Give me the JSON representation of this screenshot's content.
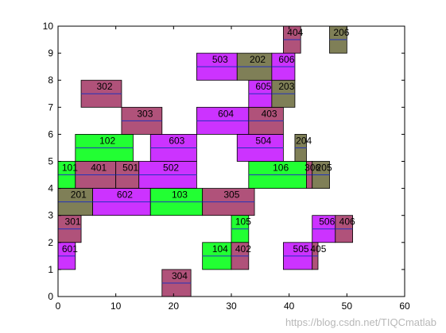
{
  "chart_data": {
    "type": "gantt",
    "xlim": [
      0,
      60
    ],
    "ylim": [
      0,
      10
    ],
    "x_ticks": [
      0,
      10,
      20,
      30,
      40,
      50,
      60
    ],
    "y_ticks": [
      0,
      1,
      2,
      3,
      4,
      5,
      6,
      7,
      8,
      9,
      10
    ],
    "grid": false,
    "colors": {
      "mauve": "#b0527a",
      "magenta": "#cc33ff",
      "green": "#22ff33",
      "olive": "#7f7f57",
      "midline": "#2233bb",
      "axes": "#000000"
    },
    "blocks": [
      {
        "label": "101",
        "x0": 0,
        "x1": 3,
        "y0": 4,
        "y1": 5,
        "color": "green"
      },
      {
        "label": "401",
        "x0": 3,
        "x1": 10,
        "y0": 4,
        "y1": 5,
        "color": "mauve"
      },
      {
        "label": "501",
        "x0": 10,
        "x1": 14,
        "y0": 4,
        "y1": 5,
        "color": "mauve"
      },
      {
        "label": "502",
        "x0": 14,
        "x1": 24,
        "y0": 4,
        "y1": 5,
        "color": "magenta"
      },
      {
        "label": "106",
        "x0": 33,
        "x1": 43,
        "y0": 4,
        "y1": 5,
        "color": "green"
      },
      {
        "label": "306",
        "x0": 43,
        "x1": 44,
        "y0": 4,
        "y1": 5,
        "color": "mauve"
      },
      {
        "label": "205",
        "x0": 44,
        "x1": 47,
        "y0": 4,
        "y1": 5,
        "color": "olive"
      },
      {
        "label": "102",
        "x0": 3,
        "x1": 13,
        "y0": 5,
        "y1": 6,
        "color": "green"
      },
      {
        "label": "603",
        "x0": 16,
        "x1": 24,
        "y0": 5,
        "y1": 6,
        "color": "magenta"
      },
      {
        "label": "504",
        "x0": 31,
        "x1": 39,
        "y0": 5,
        "y1": 6,
        "color": "magenta"
      },
      {
        "label": "204",
        "x0": 41,
        "x1": 43,
        "y0": 5,
        "y1": 6,
        "color": "olive"
      },
      {
        "label": "303",
        "x0": 11,
        "x1": 18,
        "y0": 6,
        "y1": 7,
        "color": "mauve"
      },
      {
        "label": "604",
        "x0": 24,
        "x1": 33,
        "y0": 6,
        "y1": 7,
        "color": "magenta"
      },
      {
        "label": "403",
        "x0": 33,
        "x1": 39,
        "y0": 6,
        "y1": 7,
        "color": "mauve"
      },
      {
        "label": "302",
        "x0": 4,
        "x1": 11,
        "y0": 7,
        "y1": 8,
        "color": "mauve"
      },
      {
        "label": "605",
        "x0": 33,
        "x1": 37,
        "y0": 7,
        "y1": 8,
        "color": "magenta"
      },
      {
        "label": "203",
        "x0": 37,
        "x1": 41,
        "y0": 7,
        "y1": 8,
        "color": "olive"
      },
      {
        "label": "503",
        "x0": 24,
        "x1": 31,
        "y0": 8,
        "y1": 9,
        "color": "magenta"
      },
      {
        "label": "202",
        "x0": 31,
        "x1": 37,
        "y0": 8,
        "y1": 9,
        "color": "olive"
      },
      {
        "label": "606",
        "x0": 37,
        "x1": 41,
        "y0": 8,
        "y1": 9,
        "color": "magenta"
      },
      {
        "label": "404",
        "x0": 39,
        "x1": 42,
        "y0": 9,
        "y1": 10,
        "color": "mauve"
      },
      {
        "label": "206",
        "x0": 47,
        "x1": 50,
        "y0": 9,
        "y1": 10,
        "color": "olive"
      },
      {
        "label": "201",
        "x0": 0,
        "x1": 6,
        "y0": 3,
        "y1": 4,
        "color": "olive"
      },
      {
        "label": "602",
        "x0": 6,
        "x1": 16,
        "y0": 3,
        "y1": 4,
        "color": "magenta"
      },
      {
        "label": "103",
        "x0": 16,
        "x1": 25,
        "y0": 3,
        "y1": 4,
        "color": "green"
      },
      {
        "label": "305",
        "x0": 25,
        "x1": 34,
        "y0": 3,
        "y1": 4,
        "color": "mauve"
      },
      {
        "label": "301",
        "x0": 0,
        "x1": 4,
        "y0": 2,
        "y1": 3,
        "color": "mauve"
      },
      {
        "label": "105",
        "x0": 30,
        "x1": 33,
        "y0": 2,
        "y1": 3,
        "color": "green"
      },
      {
        "label": "506",
        "x0": 44,
        "x1": 48,
        "y0": 2,
        "y1": 3,
        "color": "magenta"
      },
      {
        "label": "406",
        "x0": 48,
        "x1": 51,
        "y0": 2,
        "y1": 3,
        "color": "mauve"
      },
      {
        "label": "601",
        "x0": 0,
        "x1": 3,
        "y0": 1,
        "y1": 2,
        "color": "magenta"
      },
      {
        "label": "104",
        "x0": 25,
        "x1": 30,
        "y0": 1,
        "y1": 2,
        "color": "green"
      },
      {
        "label": "402",
        "x0": 30,
        "x1": 33,
        "y0": 1,
        "y1": 2,
        "color": "mauve"
      },
      {
        "label": "505",
        "x0": 39,
        "x1": 44,
        "y0": 1,
        "y1": 2,
        "color": "magenta"
      },
      {
        "label": "405",
        "x0": 44,
        "x1": 45,
        "y0": 1,
        "y1": 2,
        "color": "mauve"
      },
      {
        "label": "304",
        "x0": 18,
        "x1": 23,
        "y0": 0,
        "y1": 1,
        "color": "mauve"
      }
    ]
  },
  "watermark": "https://blog.csdn.net/TIQCmatlab"
}
